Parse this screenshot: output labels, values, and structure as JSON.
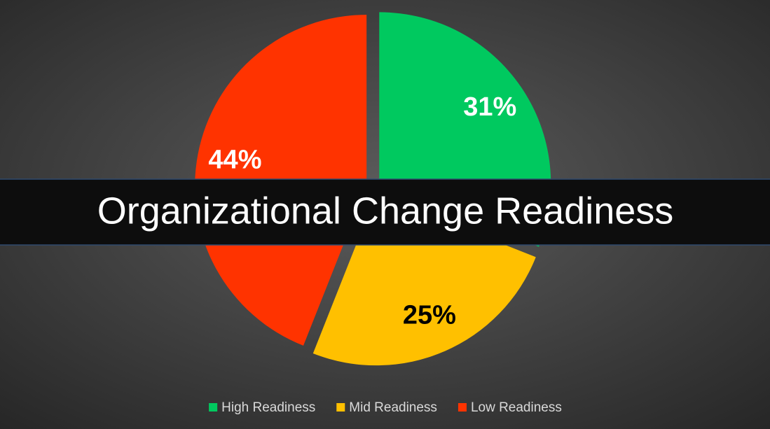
{
  "chart_data": {
    "type": "pie",
    "title": "Organizational Change Readiness",
    "categories": [
      "High Readiness",
      "Mid Readiness",
      "Low Readiness"
    ],
    "values": [
      31,
      25,
      44
    ],
    "value_labels": [
      "31%",
      "25%",
      "44%"
    ],
    "colors": [
      "#00c95f",
      "#ffc000",
      "#ff3300"
    ],
    "label_colors": [
      "#ffffff",
      "#000000",
      "#ffffff"
    ],
    "legend": "bottom"
  }
}
